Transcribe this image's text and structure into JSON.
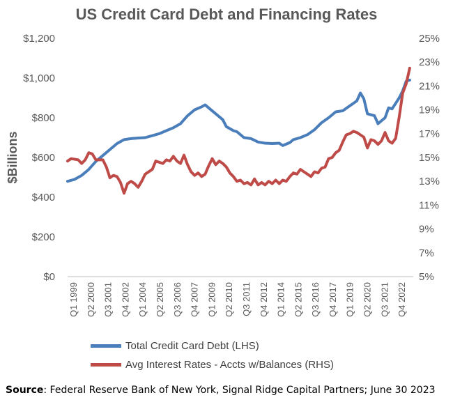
{
  "chart_data": {
    "type": "line",
    "title": "US Credit Card Debt and Financing Rates",
    "ylabel_left": "$Billions",
    "ylim_left": [
      0,
      1200
    ],
    "yticks_left": [
      "$0",
      "$200",
      "$400",
      "$600",
      "$800",
      "$1,000",
      "$1,200"
    ],
    "ylim_right": [
      5,
      25
    ],
    "yticks_right": [
      "5%",
      "7%",
      "9%",
      "11%",
      "13%",
      "15%",
      "17%",
      "19%",
      "21%",
      "23%",
      "25%"
    ],
    "x_labels": [
      "Q1 1999",
      "Q2 2000",
      "Q3 2001",
      "Q4 2002",
      "Q1 2004",
      "Q2 2005",
      "Q3 2006",
      "Q4 2007",
      "Q1 2009",
      "Q2 2010",
      "Q3 2011",
      "Q4 2012",
      "Q1 2014",
      "Q2 2015",
      "Q3 2016",
      "Q4 2017",
      "Q1 2019",
      "Q2 2020",
      "Q3 2021",
      "Q4 2022"
    ],
    "series": [
      {
        "name": "Total Credit Card Debt (LHS)",
        "axis": "left",
        "color": "#4a7ebb",
        "points": [
          [
            1999.0,
            480
          ],
          [
            1999.5,
            490
          ],
          [
            2000.0,
            510
          ],
          [
            2000.5,
            540
          ],
          [
            2001.0,
            580
          ],
          [
            2001.5,
            610
          ],
          [
            2002.0,
            640
          ],
          [
            2002.5,
            670
          ],
          [
            2003.0,
            690
          ],
          [
            2003.5,
            695
          ],
          [
            2004.0,
            698
          ],
          [
            2004.5,
            700
          ],
          [
            2005.0,
            710
          ],
          [
            2005.5,
            720
          ],
          [
            2006.0,
            735
          ],
          [
            2006.5,
            750
          ],
          [
            2007.0,
            770
          ],
          [
            2007.5,
            810
          ],
          [
            2008.0,
            840
          ],
          [
            2008.5,
            855
          ],
          [
            2008.75,
            865
          ],
          [
            2009.0,
            850
          ],
          [
            2009.5,
            820
          ],
          [
            2010.0,
            790
          ],
          [
            2010.25,
            755
          ],
          [
            2010.75,
            735
          ],
          [
            2011.0,
            730
          ],
          [
            2011.5,
            700
          ],
          [
            2012.0,
            695
          ],
          [
            2012.5,
            678
          ],
          [
            2013.0,
            672
          ],
          [
            2013.5,
            670
          ],
          [
            2014.0,
            672
          ],
          [
            2014.25,
            660
          ],
          [
            2014.75,
            675
          ],
          [
            2015.0,
            690
          ],
          [
            2015.5,
            700
          ],
          [
            2016.0,
            715
          ],
          [
            2016.5,
            740
          ],
          [
            2017.0,
            775
          ],
          [
            2017.5,
            800
          ],
          [
            2018.0,
            830
          ],
          [
            2018.5,
            835
          ],
          [
            2019.0,
            860
          ],
          [
            2019.5,
            885
          ],
          [
            2019.75,
            925
          ],
          [
            2020.0,
            895
          ],
          [
            2020.25,
            820
          ],
          [
            2020.75,
            810
          ],
          [
            2021.0,
            770
          ],
          [
            2021.5,
            800
          ],
          [
            2021.75,
            850
          ],
          [
            2022.0,
            845
          ],
          [
            2022.5,
            900
          ],
          [
            2022.75,
            935
          ],
          [
            2023.0,
            985
          ],
          [
            2023.25,
            990
          ]
        ]
      },
      {
        "name": "Avg Interest Rates - Accts w/Balances (RHS)",
        "axis": "right",
        "color": "#be4b48",
        "points": [
          [
            1999.0,
            14.7
          ],
          [
            1999.25,
            14.9
          ],
          [
            1999.75,
            14.8
          ],
          [
            2000.0,
            14.5
          ],
          [
            2000.25,
            14.8
          ],
          [
            2000.5,
            15.4
          ],
          [
            2000.75,
            15.3
          ],
          [
            2001.0,
            14.8
          ],
          [
            2001.5,
            14.8
          ],
          [
            2001.75,
            14.2
          ],
          [
            2002.0,
            13.3
          ],
          [
            2002.25,
            13.5
          ],
          [
            2002.5,
            13.4
          ],
          [
            2002.75,
            12.9
          ],
          [
            2003.0,
            12.0
          ],
          [
            2003.25,
            12.8
          ],
          [
            2003.5,
            13.0
          ],
          [
            2003.75,
            12.8
          ],
          [
            2004.0,
            12.5
          ],
          [
            2004.25,
            13.0
          ],
          [
            2004.5,
            13.6
          ],
          [
            2005.0,
            14.0
          ],
          [
            2005.25,
            14.7
          ],
          [
            2005.75,
            14.5
          ],
          [
            2006.0,
            14.8
          ],
          [
            2006.25,
            14.7
          ],
          [
            2006.5,
            15.1
          ],
          [
            2006.75,
            14.7
          ],
          [
            2007.0,
            14.5
          ],
          [
            2007.25,
            15.2
          ],
          [
            2007.5,
            14.4
          ],
          [
            2007.75,
            13.8
          ],
          [
            2008.0,
            13.5
          ],
          [
            2008.25,
            13.7
          ],
          [
            2008.5,
            13.4
          ],
          [
            2008.75,
            13.6
          ],
          [
            2009.0,
            14.3
          ],
          [
            2009.25,
            14.9
          ],
          [
            2009.5,
            14.4
          ],
          [
            2009.75,
            14.7
          ],
          [
            2010.0,
            14.5
          ],
          [
            2010.25,
            14.2
          ],
          [
            2010.5,
            13.7
          ],
          [
            2010.75,
            13.4
          ],
          [
            2011.0,
            13.0
          ],
          [
            2011.25,
            13.1
          ],
          [
            2011.5,
            12.8
          ],
          [
            2011.75,
            12.9
          ],
          [
            2012.0,
            12.7
          ],
          [
            2012.25,
            13.2
          ],
          [
            2012.5,
            12.7
          ],
          [
            2012.75,
            12.9
          ],
          [
            2013.0,
            12.7
          ],
          [
            2013.25,
            13.0
          ],
          [
            2013.5,
            12.8
          ],
          [
            2013.75,
            13.1
          ],
          [
            2014.0,
            12.8
          ],
          [
            2014.25,
            13.1
          ],
          [
            2014.5,
            13.0
          ],
          [
            2014.75,
            13.4
          ],
          [
            2015.0,
            13.7
          ],
          [
            2015.25,
            13.6
          ],
          [
            2015.5,
            14.0
          ],
          [
            2015.75,
            13.8
          ],
          [
            2016.0,
            13.6
          ],
          [
            2016.25,
            13.4
          ],
          [
            2016.5,
            13.8
          ],
          [
            2016.75,
            13.7
          ],
          [
            2017.0,
            14.1
          ],
          [
            2017.25,
            14.2
          ],
          [
            2017.5,
            14.9
          ],
          [
            2017.75,
            15.0
          ],
          [
            2018.0,
            15.4
          ],
          [
            2018.25,
            15.6
          ],
          [
            2018.5,
            16.3
          ],
          [
            2018.75,
            16.9
          ],
          [
            2019.0,
            17.0
          ],
          [
            2019.25,
            17.2
          ],
          [
            2019.5,
            17.1
          ],
          [
            2019.75,
            16.9
          ],
          [
            2020.0,
            16.7
          ],
          [
            2020.25,
            15.8
          ],
          [
            2020.5,
            16.5
          ],
          [
            2020.75,
            16.4
          ],
          [
            2021.0,
            16.1
          ],
          [
            2021.25,
            16.4
          ],
          [
            2021.5,
            17.1
          ],
          [
            2021.75,
            16.4
          ],
          [
            2022.0,
            16.2
          ],
          [
            2022.25,
            16.6
          ],
          [
            2022.5,
            18.4
          ],
          [
            2022.75,
            20.4
          ],
          [
            2023.0,
            21.2
          ],
          [
            2023.25,
            22.5
          ]
        ]
      }
    ],
    "legend_position": "bottom",
    "grid": false
  },
  "footer": {
    "source_label": "Source",
    "source_text": ": Federal Reserve Bank of New York, Signal Ridge Capital Partners; June 30 2023"
  }
}
